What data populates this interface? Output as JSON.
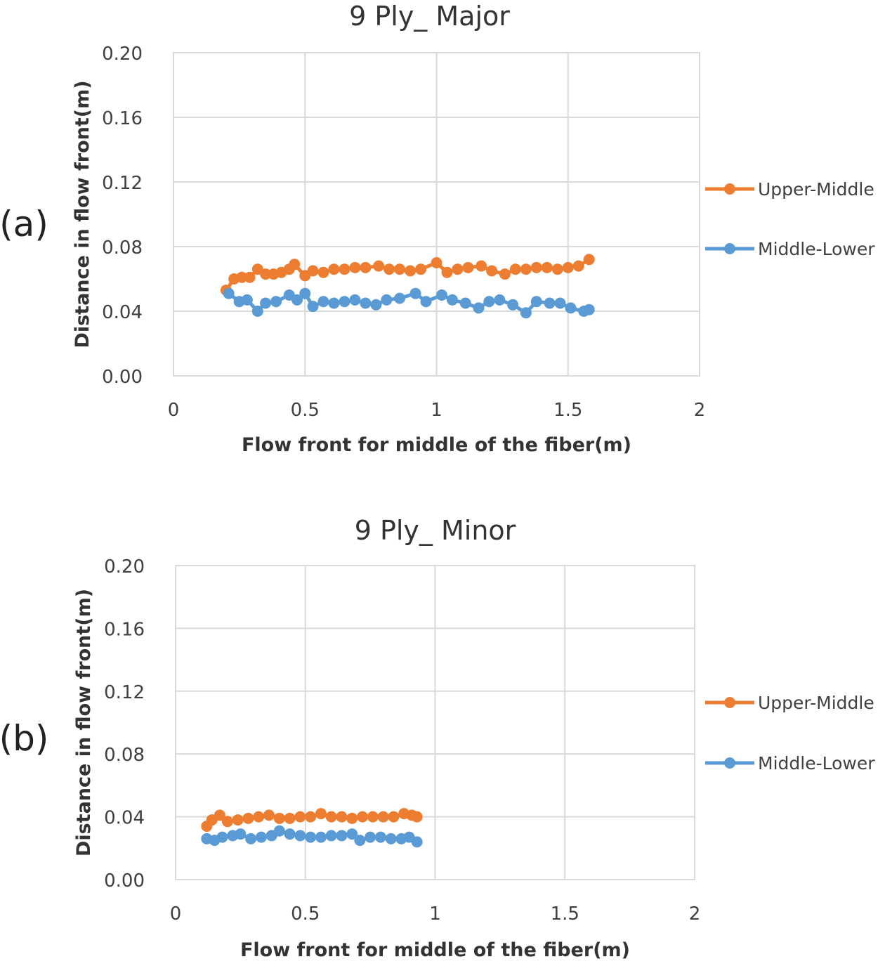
{
  "chart_data": [
    {
      "type": "line",
      "panel_label": "(a)",
      "title": "9 Ply_ Major",
      "xlabel": "Flow front for middle of the fiber(m)",
      "ylabel": "Distance in flow front(m)",
      "xlim": [
        0,
        2
      ],
      "ylim": [
        0,
        0.2
      ],
      "xticks": [
        "0",
        "0.5",
        "1",
        "1.5",
        "2"
      ],
      "yticks": [
        "0.00",
        "0.04",
        "0.08",
        "0.12",
        "0.16",
        "0.20"
      ],
      "grid": true,
      "legend_position": "right",
      "series": [
        {
          "name": "Upper-Middle",
          "color": "#ED7D31",
          "x": [
            0.2,
            0.23,
            0.26,
            0.29,
            0.32,
            0.35,
            0.38,
            0.41,
            0.44,
            0.46,
            0.5,
            0.53,
            0.57,
            0.61,
            0.65,
            0.69,
            0.73,
            0.78,
            0.82,
            0.86,
            0.9,
            0.94,
            1.0,
            1.04,
            1.08,
            1.12,
            1.17,
            1.21,
            1.26,
            1.3,
            1.34,
            1.38,
            1.42,
            1.46,
            1.5,
            1.54,
            1.58
          ],
          "y": [
            0.053,
            0.06,
            0.061,
            0.061,
            0.066,
            0.063,
            0.063,
            0.064,
            0.066,
            0.069,
            0.062,
            0.065,
            0.064,
            0.066,
            0.066,
            0.067,
            0.067,
            0.068,
            0.066,
            0.066,
            0.065,
            0.066,
            0.07,
            0.064,
            0.066,
            0.067,
            0.068,
            0.065,
            0.063,
            0.066,
            0.066,
            0.067,
            0.067,
            0.066,
            0.067,
            0.068,
            0.072
          ]
        },
        {
          "name": "Middle-Lower",
          "color": "#5B9BD5",
          "x": [
            0.21,
            0.25,
            0.28,
            0.32,
            0.35,
            0.39,
            0.44,
            0.47,
            0.5,
            0.53,
            0.57,
            0.61,
            0.65,
            0.69,
            0.73,
            0.77,
            0.81,
            0.86,
            0.92,
            0.96,
            1.02,
            1.06,
            1.11,
            1.16,
            1.2,
            1.24,
            1.29,
            1.34,
            1.38,
            1.43,
            1.47,
            1.51,
            1.56,
            1.58
          ],
          "y": [
            0.051,
            0.046,
            0.047,
            0.04,
            0.045,
            0.046,
            0.05,
            0.047,
            0.051,
            0.043,
            0.046,
            0.045,
            0.046,
            0.047,
            0.045,
            0.044,
            0.047,
            0.048,
            0.051,
            0.046,
            0.05,
            0.047,
            0.045,
            0.042,
            0.046,
            0.047,
            0.044,
            0.039,
            0.046,
            0.045,
            0.045,
            0.042,
            0.04,
            0.041
          ]
        }
      ]
    },
    {
      "type": "line",
      "panel_label": "(b)",
      "title": "9 Ply_ Minor",
      "xlabel": "Flow front for middle of the fiber(m)",
      "ylabel": "Distance in flow front(m)",
      "xlim": [
        0,
        2
      ],
      "ylim": [
        0,
        0.2
      ],
      "xticks": [
        "0",
        "0.5",
        "1",
        "1.5",
        "2"
      ],
      "yticks": [
        "0.00",
        "0.04",
        "0.08",
        "0.12",
        "0.16",
        "0.20"
      ],
      "grid": true,
      "legend_position": "right",
      "series": [
        {
          "name": "Upper-Middle",
          "color": "#ED7D31",
          "x": [
            0.12,
            0.14,
            0.17,
            0.2,
            0.24,
            0.28,
            0.32,
            0.36,
            0.4,
            0.44,
            0.48,
            0.52,
            0.56,
            0.6,
            0.64,
            0.68,
            0.72,
            0.76,
            0.8,
            0.84,
            0.88,
            0.91,
            0.93
          ],
          "y": [
            0.034,
            0.038,
            0.041,
            0.037,
            0.038,
            0.039,
            0.04,
            0.041,
            0.039,
            0.039,
            0.04,
            0.04,
            0.042,
            0.04,
            0.04,
            0.039,
            0.04,
            0.04,
            0.04,
            0.04,
            0.042,
            0.041,
            0.04
          ]
        },
        {
          "name": "Middle-Lower",
          "color": "#5B9BD5",
          "x": [
            0.12,
            0.15,
            0.18,
            0.22,
            0.25,
            0.29,
            0.33,
            0.37,
            0.4,
            0.44,
            0.48,
            0.52,
            0.56,
            0.6,
            0.64,
            0.68,
            0.71,
            0.75,
            0.79,
            0.83,
            0.87,
            0.9,
            0.93
          ],
          "y": [
            0.026,
            0.025,
            0.027,
            0.028,
            0.029,
            0.026,
            0.027,
            0.028,
            0.031,
            0.029,
            0.028,
            0.027,
            0.027,
            0.028,
            0.028,
            0.029,
            0.025,
            0.027,
            0.027,
            0.026,
            0.026,
            0.027,
            0.024
          ]
        }
      ]
    }
  ]
}
